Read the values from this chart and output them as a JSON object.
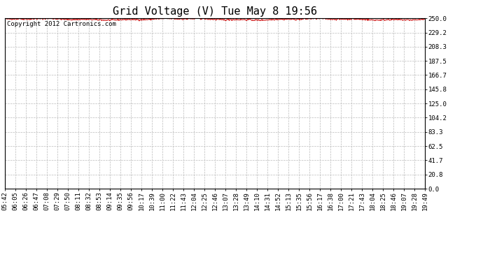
{
  "title": "Grid Voltage (V) Tue May 8 19:56",
  "line_color": "#cc0000",
  "background_color": "#ffffff",
  "grid_color": "#bbbbbb",
  "copyright_text": "Copyright 2012 Cartronics.com",
  "ylim": [
    0.0,
    250.0
  ],
  "yticks": [
    0.0,
    20.8,
    41.7,
    62.5,
    83.3,
    104.2,
    125.0,
    145.8,
    166.7,
    187.5,
    208.3,
    229.2,
    250.0
  ],
  "xtick_labels": [
    "05:42",
    "06:05",
    "06:26",
    "06:47",
    "07:08",
    "07:29",
    "07:50",
    "08:11",
    "08:32",
    "08:53",
    "09:14",
    "09:35",
    "09:56",
    "10:17",
    "10:39",
    "11:00",
    "11:22",
    "11:43",
    "12:04",
    "12:25",
    "12:46",
    "13:07",
    "13:28",
    "13:49",
    "14:10",
    "14:31",
    "14:52",
    "15:13",
    "15:35",
    "15:56",
    "16:17",
    "16:38",
    "17:00",
    "17:21",
    "17:43",
    "18:04",
    "18:25",
    "18:46",
    "19:07",
    "19:28",
    "19:49"
  ],
  "mean_voltage": 248.5,
  "num_points": 820,
  "title_fontsize": 11,
  "tick_fontsize": 6.5,
  "copyright_fontsize": 6.5,
  "line_width": 0.7
}
